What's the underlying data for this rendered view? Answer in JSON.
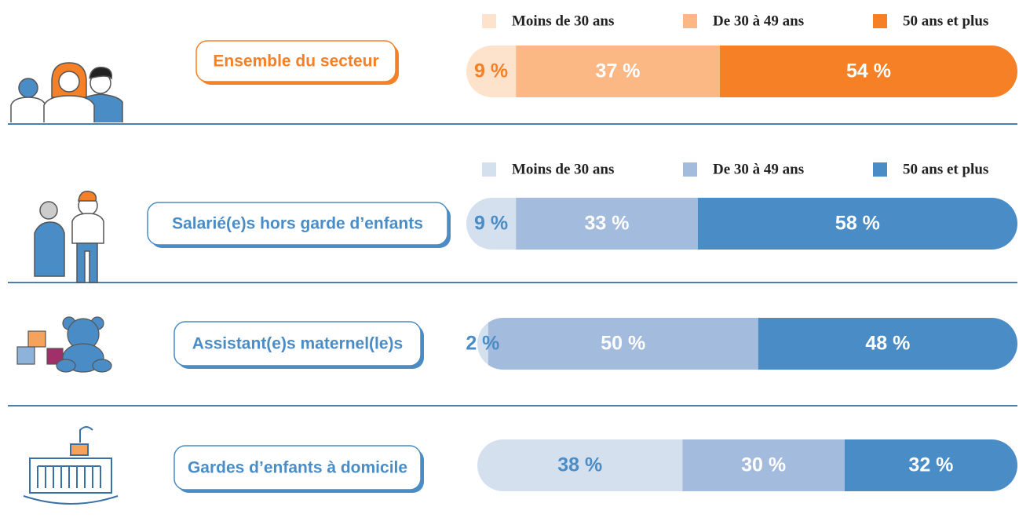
{
  "chart_data": [
    {
      "type": "bar",
      "orientation": "horizontal",
      "stacked": true,
      "legend": true,
      "xlim": [
        0,
        100
      ],
      "categories": [
        "Ensemble du secteur"
      ],
      "series": [
        {
          "name": "Moins de 30 ans",
          "color": "#fde3cc",
          "values": [
            9
          ],
          "value_labels": [
            "9 %"
          ]
        },
        {
          "name": "De 30 à 49 ans",
          "color": "#fbb884",
          "values": [
            37
          ],
          "value_labels": [
            "37 %"
          ]
        },
        {
          "name": "50 ans et plus",
          "color": "#f58025",
          "values": [
            54
          ],
          "value_labels": [
            "54 %"
          ]
        }
      ]
    },
    {
      "type": "bar",
      "orientation": "horizontal",
      "stacked": true,
      "legend": true,
      "xlim": [
        0,
        100
      ],
      "categories": [
        "Salarié(e)s hors garde d’enfants"
      ],
      "series": [
        {
          "name": "Moins de 30 ans",
          "color": "#d5e0ee",
          "values": [
            9
          ],
          "value_labels": [
            "9 %"
          ]
        },
        {
          "name": "De 30 à 49 ans",
          "color": "#a3bbdc",
          "values": [
            33
          ],
          "value_labels": [
            "33 %"
          ]
        },
        {
          "name": "50 ans et plus",
          "color": "#4a8cc6",
          "values": [
            58
          ],
          "value_labels": [
            "58 %"
          ]
        }
      ]
    },
    {
      "type": "bar",
      "orientation": "horizontal",
      "stacked": true,
      "legend": false,
      "xlim": [
        0,
        100
      ],
      "categories": [
        "Assistant(e)s maternel(le)s"
      ],
      "series": [
        {
          "color": "#d5e0ee",
          "values": [
            2
          ],
          "value_labels": [
            "2 %"
          ]
        },
        {
          "color": "#a3bbdc",
          "values": [
            50
          ],
          "value_labels": [
            "50 %"
          ]
        },
        {
          "color": "#4a8cc6",
          "values": [
            48
          ],
          "value_labels": [
            "48 %"
          ]
        }
      ]
    },
    {
      "type": "bar",
      "orientation": "horizontal",
      "stacked": true,
      "legend": false,
      "xlim": [
        0,
        100
      ],
      "categories": [
        "Gardes d’enfants à domicile"
      ],
      "series": [
        {
          "color": "#d5e0ee",
          "values": [
            38
          ],
          "value_labels": [
            "38 %"
          ]
        },
        {
          "color": "#a3bbdc",
          "values": [
            30
          ],
          "value_labels": [
            "30 %"
          ]
        },
        {
          "color": "#4a8cc6",
          "values": [
            32
          ],
          "value_labels": [
            "32 %"
          ]
        }
      ]
    }
  ]
}
